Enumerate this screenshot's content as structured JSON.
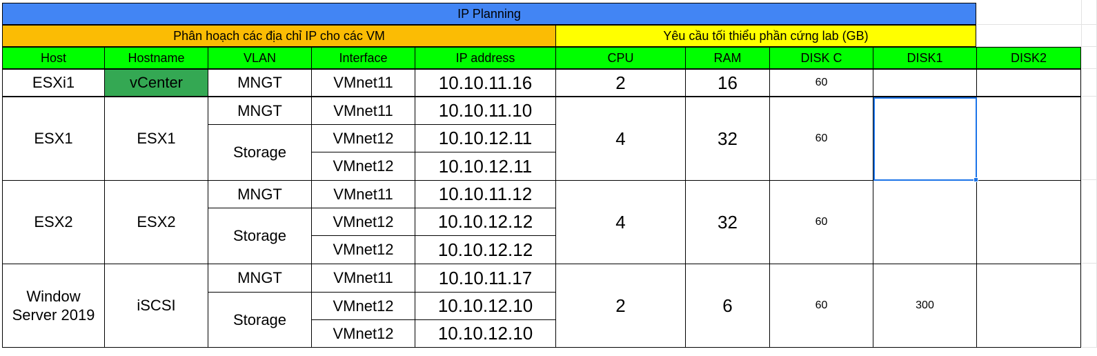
{
  "title": "IP Planning",
  "section_ip": "Phân hoạch các địa chỉ IP cho các VM",
  "section_hw": "Yêu cầu tối thiểu phần cứng lab (GB)",
  "headers": [
    "Host",
    "Hostname",
    "VLAN",
    "Interface",
    "IP address",
    "CPU",
    "RAM",
    "DISK C",
    "DISK1",
    "DISK2"
  ],
  "rows": [
    {
      "host": "ESXi1",
      "hostname": "vCenter",
      "cpu": "2",
      "ram": "16",
      "disk_c": "60",
      "disk1": "",
      "vlans": [
        "MNGT"
      ],
      "interfaces": [
        "VMnet11"
      ],
      "ips": [
        "10.10.11.16"
      ]
    },
    {
      "host": "ESX1",
      "hostname": "ESX1",
      "cpu": "4",
      "ram": "32",
      "disk_c": "60",
      "disk1": "",
      "vlans": [
        "MNGT",
        "Storage"
      ],
      "interfaces": [
        "VMnet11",
        "VMnet12",
        "VMnet12"
      ],
      "ips": [
        "10.10.11.10",
        "10.10.12.11",
        "10.10.12.11"
      ]
    },
    {
      "host": "ESX2",
      "hostname": "ESX2",
      "cpu": "4",
      "ram": "32",
      "disk_c": "60",
      "disk1": "",
      "vlans": [
        "MNGT",
        "Storage"
      ],
      "interfaces": [
        "VMnet11",
        "VMnet12",
        "VMnet12"
      ],
      "ips": [
        "10.10.11.12",
        "10.10.12.12",
        "10.10.12.12"
      ]
    },
    {
      "host": "Window Server 2019",
      "hostname": "iSCSI",
      "cpu": "2",
      "ram": "6",
      "disk_c": "60",
      "disk1": "300",
      "vlans": [
        "MNGT",
        "Storage"
      ],
      "interfaces": [
        "VMnet11",
        "VMnet12",
        "VMnet12"
      ],
      "ips": [
        "10.10.11.17",
        "10.10.12.10",
        "10.10.12.10"
      ]
    }
  ],
  "colors": {
    "title_bg": "#4285f4",
    "ip_section_bg": "#fbbc04",
    "hw_section_bg": "#ffff00",
    "header_bg": "#00ff00",
    "vcenter_bg": "#34a853",
    "selection": "#1a73e8"
  }
}
